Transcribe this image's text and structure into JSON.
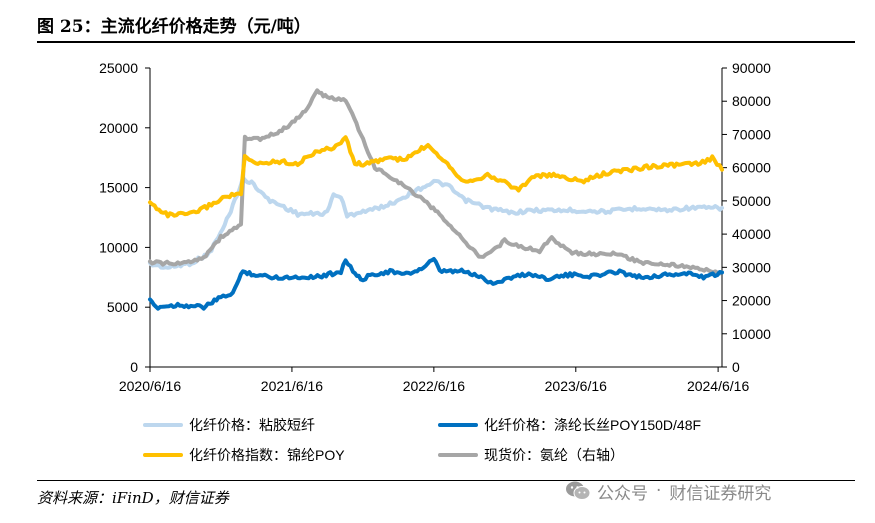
{
  "header": {
    "title": "图 25：主流化纤价格走势（元/吨）"
  },
  "footer": {
    "source": "资料来源：iFinD，财信证券"
  },
  "watermark": {
    "text_a": "公众号",
    "dot": "·",
    "text_b": "财信证券研究",
    "icon": "wechat-icon"
  },
  "chart_data": {
    "type": "line",
    "title": "图 25：主流化纤价格走势（元/吨）",
    "x_ticks": [
      "2020/6/16",
      "2021/6/16",
      "2022/6/16",
      "2023/6/16",
      "2024/6/16"
    ],
    "x_range": [
      "2020-06-16",
      "2024-06-26"
    ],
    "y_left": {
      "range": [
        0,
        25000
      ],
      "ticks": [
        0,
        5000,
        10000,
        15000,
        20000,
        25000
      ]
    },
    "y_right": {
      "range": [
        0,
        90000
      ],
      "ticks": [
        0,
        10000,
        20000,
        30000,
        40000,
        50000,
        60000,
        70000,
        80000,
        90000
      ]
    },
    "grid": false,
    "legend_position": "bottom",
    "series": [
      {
        "name": "化纤价格：粘胶短纤",
        "axis": "left",
        "color": "#bdd7ee",
        "points": [
          [
            "2020-06-16",
            8600
          ],
          [
            "2020-08-01",
            8300
          ],
          [
            "2020-10-01",
            8700
          ],
          [
            "2020-11-15",
            9500
          ],
          [
            "2020-12-20",
            11500
          ],
          [
            "2021-01-15",
            13500
          ],
          [
            "2021-02-10",
            15700
          ],
          [
            "2021-03-10",
            15300
          ],
          [
            "2021-04-15",
            14000
          ],
          [
            "2021-05-20",
            13500
          ],
          [
            "2021-07-01",
            12800
          ],
          [
            "2021-08-15",
            12800
          ],
          [
            "2021-09-15",
            12900
          ],
          [
            "2021-10-01",
            14500
          ],
          [
            "2021-10-20",
            14200
          ],
          [
            "2021-11-05",
            12600
          ],
          [
            "2021-12-10",
            13000
          ],
          [
            "2022-01-15",
            13200
          ],
          [
            "2022-03-01",
            13700
          ],
          [
            "2022-04-15",
            14500
          ],
          [
            "2022-06-16",
            15500
          ],
          [
            "2022-07-20",
            15200
          ],
          [
            "2022-09-01",
            14000
          ],
          [
            "2022-11-01",
            13300
          ],
          [
            "2023-01-01",
            12900
          ],
          [
            "2023-03-01",
            13100
          ],
          [
            "2023-06-01",
            13100
          ],
          [
            "2023-09-01",
            13000
          ],
          [
            "2023-12-01",
            13300
          ],
          [
            "2024-02-01",
            13100
          ],
          [
            "2024-04-01",
            13300
          ],
          [
            "2024-06-26",
            13300
          ]
        ]
      },
      {
        "name": "化纤价格：涤纶长丝POY150D/48F",
        "axis": "left",
        "color": "#0070c0",
        "points": [
          [
            "2020-06-16",
            5500
          ],
          [
            "2020-07-01",
            5000
          ],
          [
            "2020-09-01",
            5200
          ],
          [
            "2020-11-01",
            5000
          ],
          [
            "2020-12-15",
            5800
          ],
          [
            "2021-01-15",
            6200
          ],
          [
            "2021-02-10",
            8000
          ],
          [
            "2021-03-15",
            7700
          ],
          [
            "2021-05-01",
            7500
          ],
          [
            "2021-07-01",
            7500
          ],
          [
            "2021-09-01",
            7600
          ],
          [
            "2021-10-20",
            8000
          ],
          [
            "2021-11-01",
            9000
          ],
          [
            "2021-11-20",
            8000
          ],
          [
            "2021-12-10",
            7300
          ],
          [
            "2022-01-15",
            7800
          ],
          [
            "2022-03-01",
            8000
          ],
          [
            "2022-04-01",
            7700
          ],
          [
            "2022-05-15",
            8200
          ],
          [
            "2022-06-16",
            9000
          ],
          [
            "2022-07-01",
            8000
          ],
          [
            "2022-09-01",
            8000
          ],
          [
            "2022-10-15",
            7500
          ],
          [
            "2022-11-15",
            7000
          ],
          [
            "2023-01-01",
            7500
          ],
          [
            "2023-02-15",
            7800
          ],
          [
            "2023-04-01",
            7400
          ],
          [
            "2023-06-01",
            7700
          ],
          [
            "2023-08-01",
            7600
          ],
          [
            "2023-10-01",
            8000
          ],
          [
            "2023-12-01",
            7500
          ],
          [
            "2024-02-01",
            7700
          ],
          [
            "2024-04-01",
            7800
          ],
          [
            "2024-05-15",
            7500
          ],
          [
            "2024-06-26",
            7900
          ]
        ]
      },
      {
        "name": "化纤价格指数：锦纶POY",
        "axis": "left",
        "color": "#ffc000",
        "points": [
          [
            "2020-06-16",
            13700
          ],
          [
            "2020-08-01",
            12700
          ],
          [
            "2020-10-01",
            12800
          ],
          [
            "2020-11-15",
            13500
          ],
          [
            "2021-01-01",
            14300
          ],
          [
            "2021-02-05",
            14500
          ],
          [
            "2021-02-15",
            17500
          ],
          [
            "2021-03-15",
            17000
          ],
          [
            "2021-05-15",
            17200
          ],
          [
            "2021-07-01",
            17000
          ],
          [
            "2021-08-15",
            18000
          ],
          [
            "2021-10-01",
            18300
          ],
          [
            "2021-11-01",
            19200
          ],
          [
            "2021-11-25",
            17000
          ],
          [
            "2022-01-01",
            17000
          ],
          [
            "2022-02-15",
            17500
          ],
          [
            "2022-04-01",
            17300
          ],
          [
            "2022-06-01",
            18600
          ],
          [
            "2022-07-15",
            17200
          ],
          [
            "2022-09-01",
            15500
          ],
          [
            "2022-11-01",
            16000
          ],
          [
            "2022-12-20",
            15400
          ],
          [
            "2023-01-20",
            14800
          ],
          [
            "2023-03-01",
            16000
          ],
          [
            "2023-05-01",
            16000
          ],
          [
            "2023-07-01",
            15500
          ],
          [
            "2023-09-01",
            16200
          ],
          [
            "2023-11-01",
            16500
          ],
          [
            "2024-01-01",
            16800
          ],
          [
            "2024-03-01",
            16900
          ],
          [
            "2024-05-01",
            17000
          ],
          [
            "2024-06-01",
            17500
          ],
          [
            "2024-06-26",
            16500
          ]
        ]
      },
      {
        "name": "现货价：氨纶（右轴）",
        "axis": "right",
        "color": "#a6a6a6",
        "points": [
          [
            "2020-06-16",
            31500
          ],
          [
            "2020-09-01",
            31000
          ],
          [
            "2020-11-01",
            33000
          ],
          [
            "2020-12-15",
            39000
          ],
          [
            "2021-02-05",
            43000
          ],
          [
            "2021-02-15",
            69000
          ],
          [
            "2021-04-01",
            68500
          ],
          [
            "2021-06-01",
            72000
          ],
          [
            "2021-07-20",
            77000
          ],
          [
            "2021-08-20",
            83000
          ],
          [
            "2021-09-15",
            81000
          ],
          [
            "2021-11-01",
            80500
          ],
          [
            "2021-12-10",
            70000
          ],
          [
            "2022-01-15",
            60000
          ],
          [
            "2022-03-01",
            57000
          ],
          [
            "2022-05-01",
            52000
          ],
          [
            "2022-07-01",
            46000
          ],
          [
            "2022-09-01",
            38000
          ],
          [
            "2022-10-15",
            33000
          ],
          [
            "2022-11-15",
            35000
          ],
          [
            "2022-12-15",
            38000
          ],
          [
            "2023-02-01",
            36000
          ],
          [
            "2023-03-15",
            35000
          ],
          [
            "2023-04-15",
            39000
          ],
          [
            "2023-06-01",
            34500
          ],
          [
            "2023-08-01",
            34000
          ],
          [
            "2023-10-01",
            34000
          ],
          [
            "2023-12-01",
            31500
          ],
          [
            "2024-02-01",
            31000
          ],
          [
            "2024-04-01",
            30000
          ],
          [
            "2024-06-26",
            28500
          ]
        ]
      }
    ],
    "legend": [
      "化纤价格：粘胶短纤",
      "化纤价格：涤纶长丝POY150D/48F",
      "化纤价格指数：锦纶POY",
      "现货价：氨纶（右轴）"
    ]
  }
}
